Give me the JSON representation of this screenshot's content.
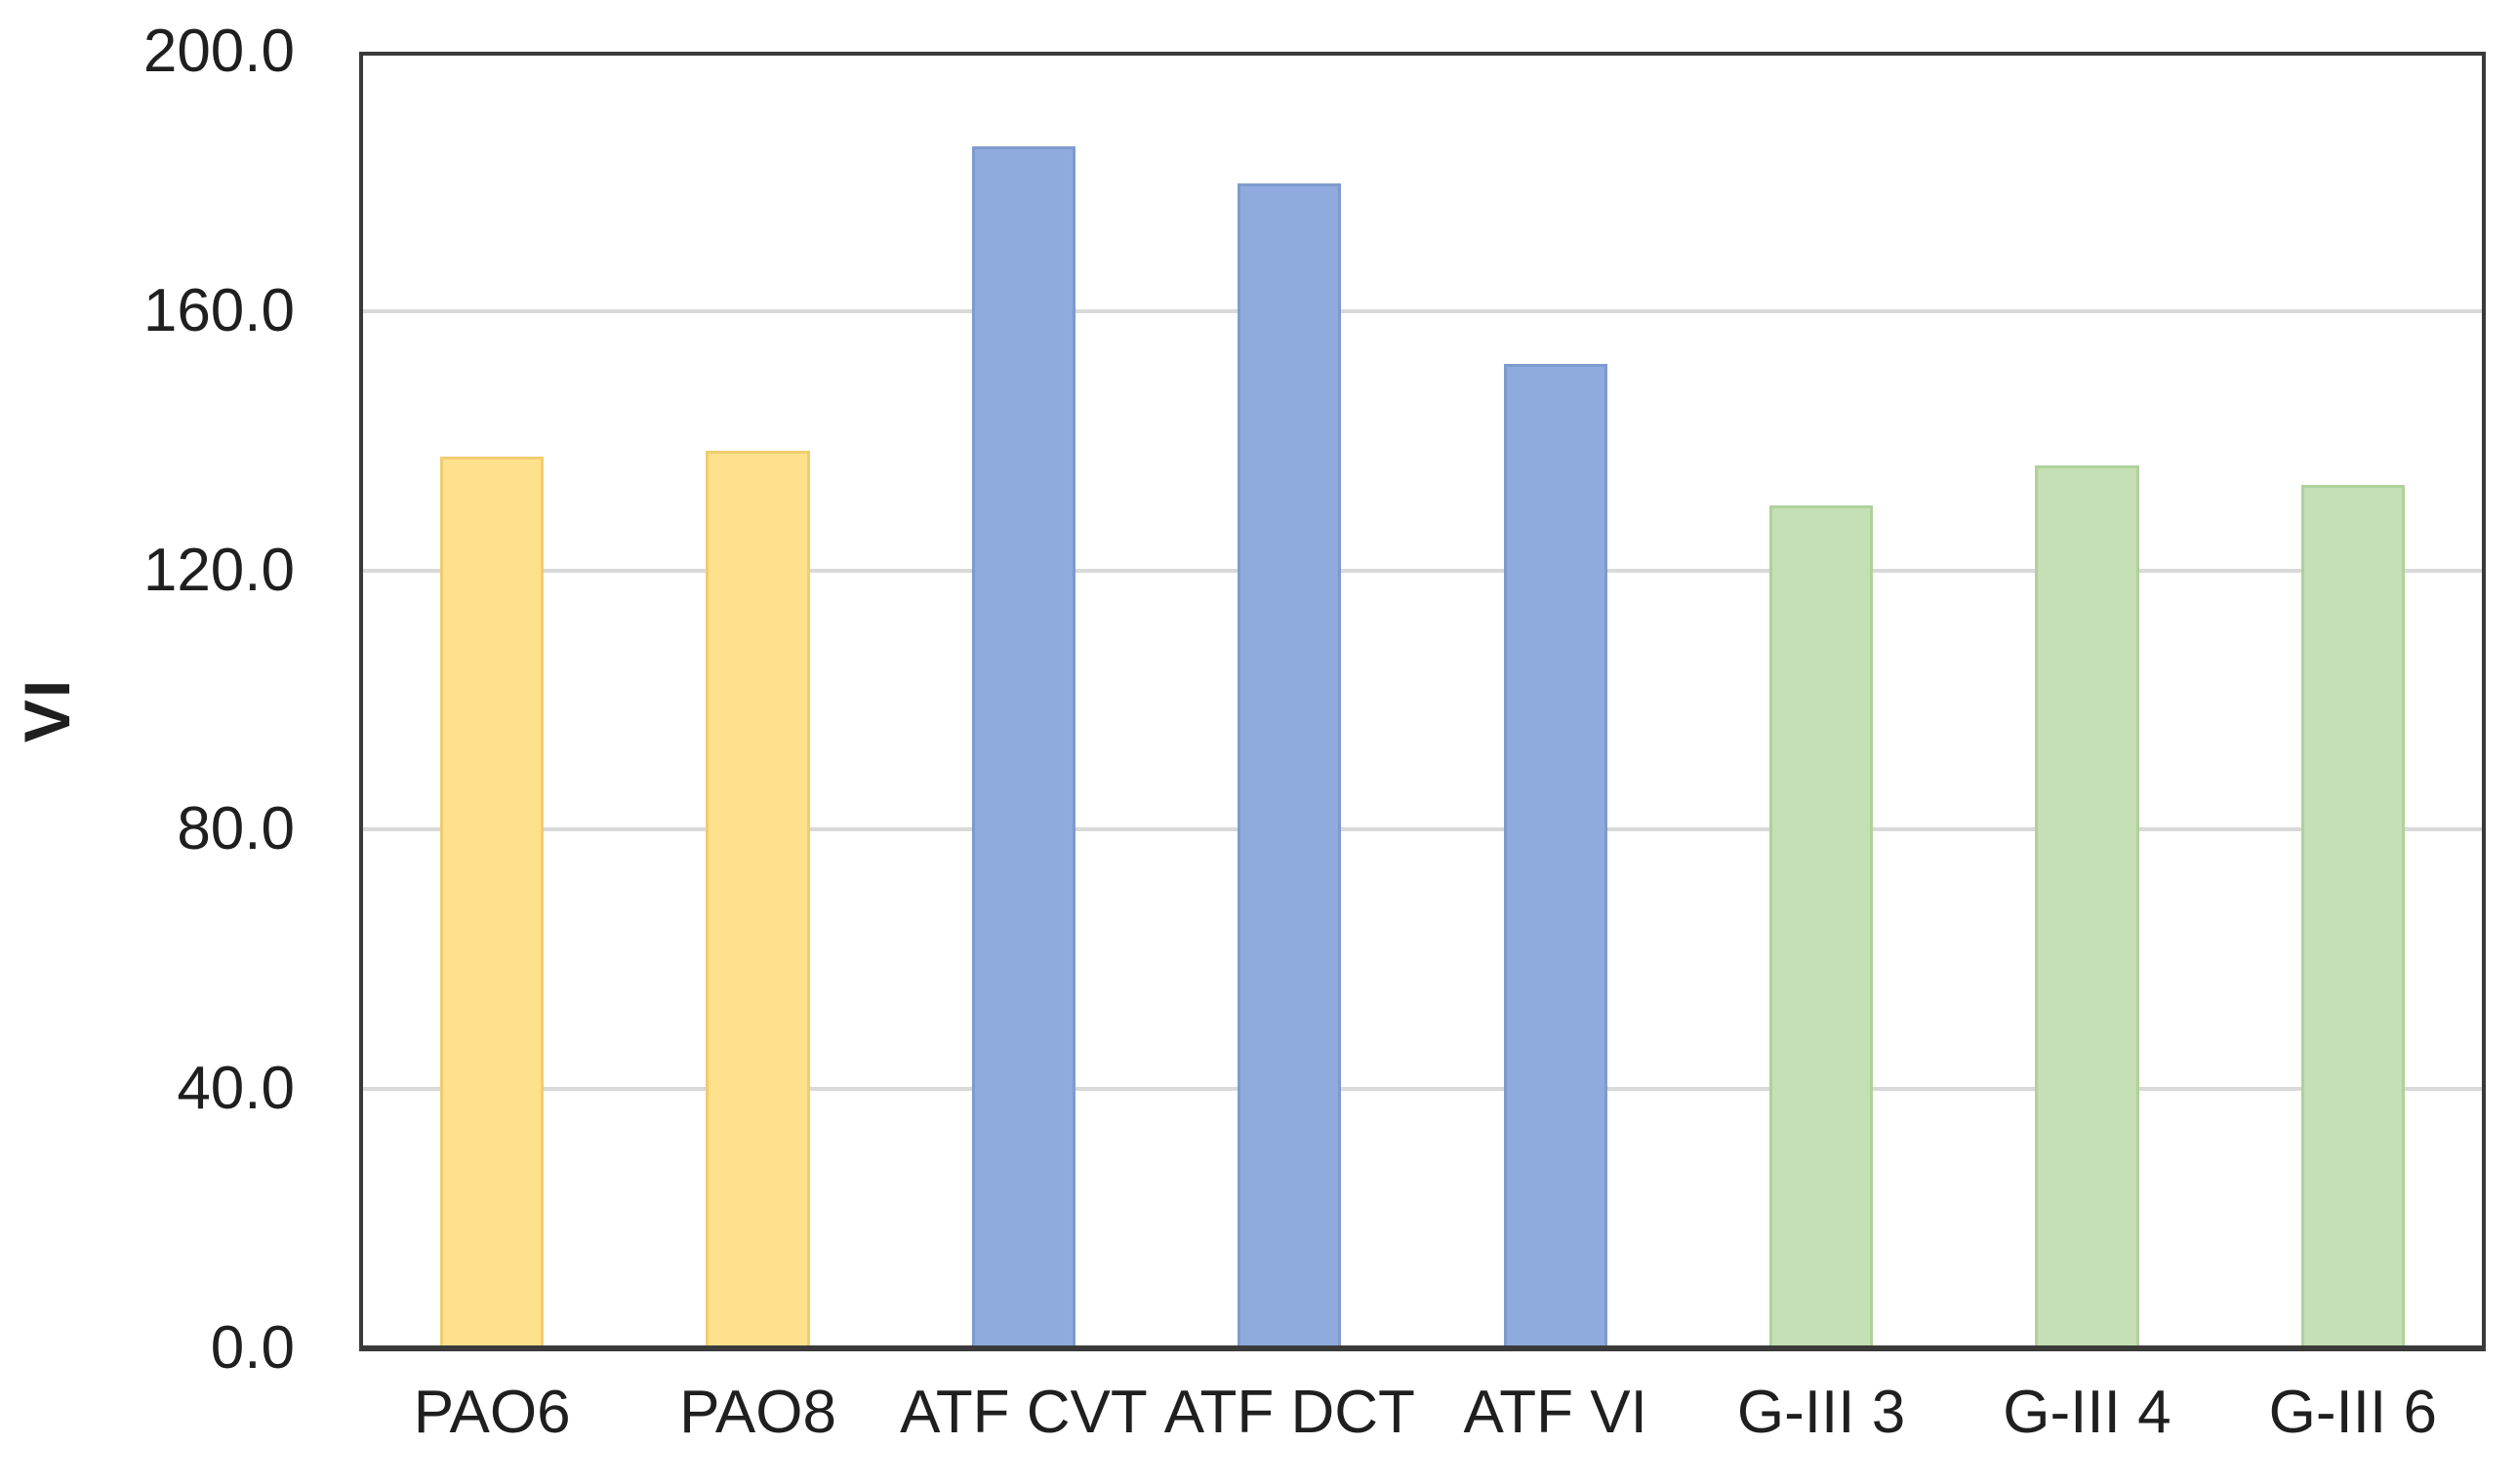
{
  "chart_data": {
    "type": "bar",
    "title": "",
    "xlabel": "",
    "ylabel": "VI",
    "categories": [
      "PAO6",
      "PAO8",
      "ATF CVT",
      "ATF DCT",
      "ATF VI",
      "G-III 3",
      "G-III 4",
      "G-III 6"
    ],
    "values": [
      137.5,
      138.4,
      185.4,
      179.7,
      151.9,
      130.0,
      136.2,
      133.2
    ],
    "bar_colors": [
      "#FFE08C",
      "#FFE08C",
      "#8FAADC",
      "#8FAADC",
      "#8FAADC",
      "#C5E0B4",
      "#C5E0B4",
      "#C5E0B4"
    ],
    "bar_edge_colors": [
      "#F0CD6F",
      "#F0CD6F",
      "#7E9BCE",
      "#7E9BCE",
      "#7E9BCE",
      "#AFD19B",
      "#AFD19B",
      "#AFD19B"
    ],
    "color_groups": {
      "yellow": [
        "PAO6",
        "PAO8"
      ],
      "blue": [
        "ATF CVT",
        "ATF DCT",
        "ATF VI"
      ],
      "green": [
        "G-III 3",
        "G-III 4",
        "G-III 6"
      ]
    },
    "ylim": [
      0,
      200
    ],
    "yticks": [
      0,
      40,
      80,
      120,
      160,
      200
    ],
    "ytick_labels": [
      "0.0",
      "40.0",
      "80.0",
      "120.0",
      "160.0",
      "200.0"
    ],
    "grid": true,
    "gridline_color": "#D9D9D9",
    "plot_border_color": "#3a3a3a",
    "axis_text_color": "#1f1f1f",
    "background": "#FFFFFF",
    "legend": null
  }
}
